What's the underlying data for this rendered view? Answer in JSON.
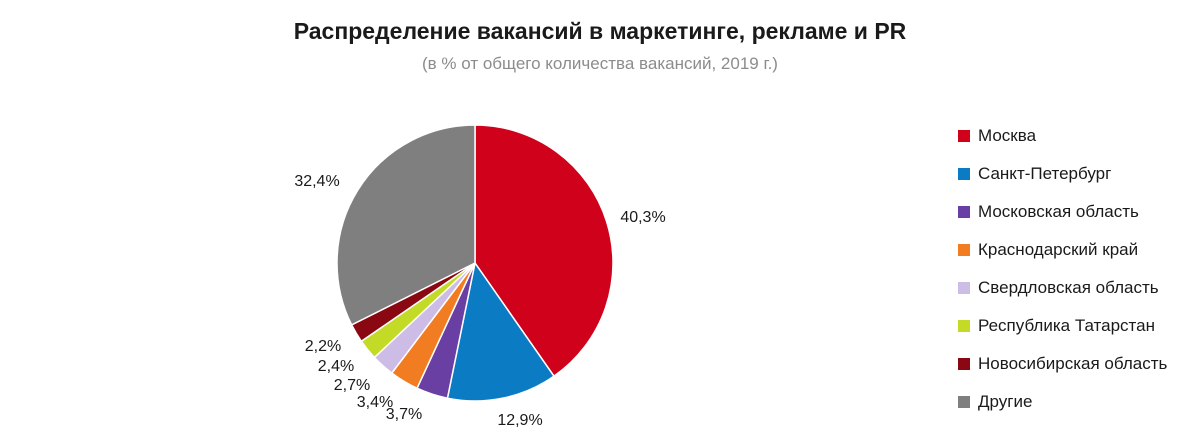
{
  "title": "Распределение вакансий в маркетинге, рекламе и PR",
  "subtitle": "(в % от общего количества вакансий, 2019 г.)",
  "chart_data": {
    "type": "pie",
    "title": "Распределение вакансий в маркетинге, рекламе и PR",
    "subtitle": "(в % от общего количества вакансий, 2019 г.)",
    "legend_position": "right",
    "start": "12 o'clock, clockwise",
    "slices": [
      {
        "name": "Москва",
        "value": 40.3,
        "label": "40,3%",
        "color": "#d0021b"
      },
      {
        "name": "Санкт-Петербург",
        "value": 12.9,
        "label": "12,9%",
        "color": "#0b7bc4"
      },
      {
        "name": "Московская область",
        "value": 3.7,
        "label": "3,7%",
        "color": "#6a3fa3"
      },
      {
        "name": "Краснодарский край",
        "value": 3.4,
        "label": "3,4%",
        "color": "#f27c21"
      },
      {
        "name": "Свердловская область",
        "value": 2.7,
        "label": "2,7%",
        "color": "#cdbde6"
      },
      {
        "name": "Республика Татарстан",
        "value": 2.4,
        "label": "2,4%",
        "color": "#c3db27"
      },
      {
        "name": "Новосибирская область",
        "value": 2.2,
        "label": "2,2%",
        "color": "#8a0812"
      },
      {
        "name": "Другие",
        "value": 32.4,
        "label": "32,4%",
        "color": "#7f7f7f"
      }
    ]
  }
}
